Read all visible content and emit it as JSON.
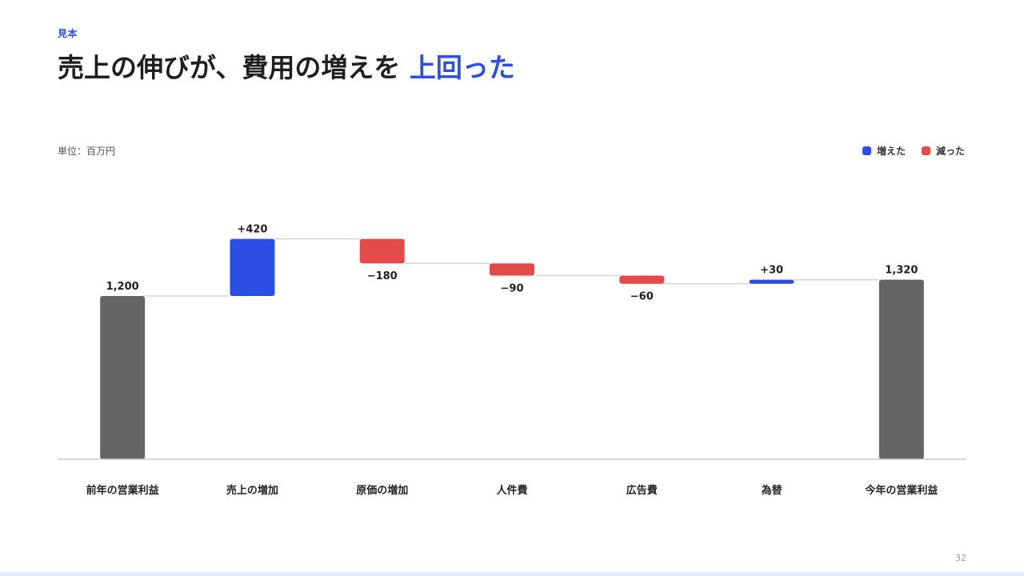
{
  "header": {
    "eyebrow": "見本",
    "title_main": "売上の伸びが、費用の増えを",
    "title_accent": "上回った"
  },
  "unit_label": "単位：百万円",
  "legend": {
    "increase": {
      "label": "増えた",
      "color": "#2b4ee6"
    },
    "decrease": {
      "label": "減った",
      "color": "#e44a4a"
    }
  },
  "colors": {
    "total": "#636465",
    "connector": "#d4d4d4",
    "baseline": "#c8c8c8"
  },
  "page_number": "32",
  "chart_data": {
    "type": "waterfall",
    "title": "売上の伸びが、費用の増えを 上回った",
    "ylabel": "単位：百万円",
    "ylim": [
      0,
      1550
    ],
    "grid": false,
    "legend_position": "top-right",
    "categories": [
      "前年の営業利益",
      "売上の増加",
      "原価の増加",
      "人件費",
      "広告費",
      "為替",
      "今年の営業利益"
    ],
    "values": [
      1200,
      420,
      -180,
      -90,
      -60,
      30,
      1320
    ],
    "kinds": [
      "total",
      "increase",
      "decrease",
      "decrease",
      "decrease",
      "increase",
      "total"
    ],
    "labels": [
      "1,200",
      "+420",
      "−180",
      "−90",
      "−60",
      "+30",
      "1,320"
    ]
  }
}
